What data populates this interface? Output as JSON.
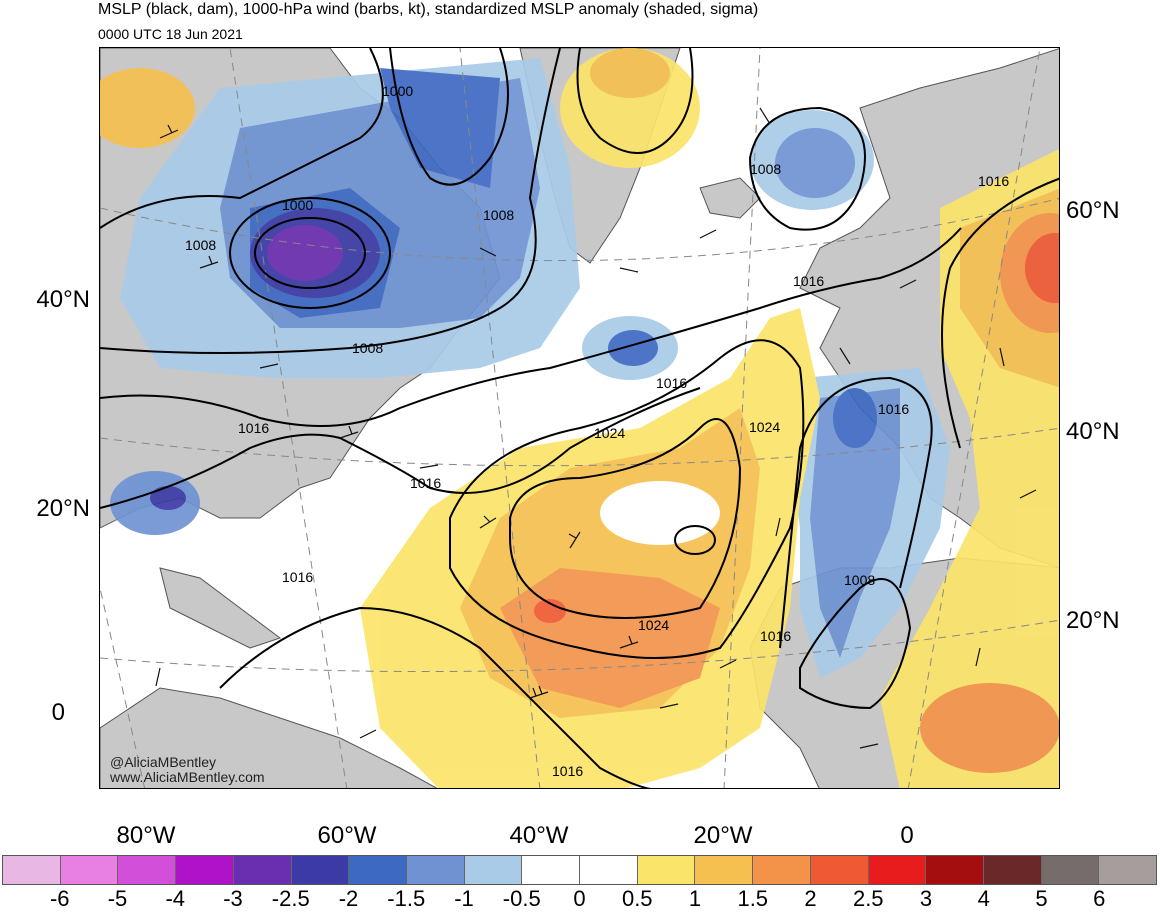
{
  "header": {
    "title": "MSLP (black, dam), 1000-hPa wind (barbs, kt), standardized MSLP anomaly (shaded, sigma)",
    "valid_time": "0000 UTC 18 Jun 2021"
  },
  "axes": {
    "lat_left": [
      "40°N",
      "20°N",
      "0"
    ],
    "lat_right": [
      "60°N",
      "40°N",
      "20°N"
    ],
    "lon_bottom": [
      "80°W",
      "60°W",
      "40°W",
      "20°W",
      "0"
    ]
  },
  "contour_labels": [
    "1000",
    "1000",
    "1008",
    "1008",
    "1008",
    "1008",
    "1016",
    "1016",
    "1016",
    "1016",
    "1016",
    "1016",
    "1024",
    "1024",
    "1024",
    "1016",
    "1016",
    "1008",
    "1016"
  ],
  "credit": {
    "handle": "@AliciaMBentley",
    "site": "www.AliciaMBentley.com"
  },
  "colorbar": {
    "colors": [
      "#e8b7e4",
      "#e880e3",
      "#d24fda",
      "#b012c9",
      "#6a2fb0",
      "#3c3aa6",
      "#3e69c2",
      "#6f93d2",
      "#a9cbe8",
      "#ffffff",
      "#ffffff",
      "#fbe46a",
      "#f5c04f",
      "#f3934a",
      "#ef5a34",
      "#e81c1c",
      "#a50e0e",
      "#6b2828",
      "#766c6c",
      "#a69d9d"
    ],
    "labels": [
      "-6",
      "-5",
      "-4",
      "-3",
      "-2.5",
      "-2",
      "-1.5",
      "-1",
      "-0.5",
      "0",
      "0.5",
      "1",
      "1.5",
      "2",
      "2.5",
      "3",
      "4",
      "5",
      "6"
    ]
  }
}
